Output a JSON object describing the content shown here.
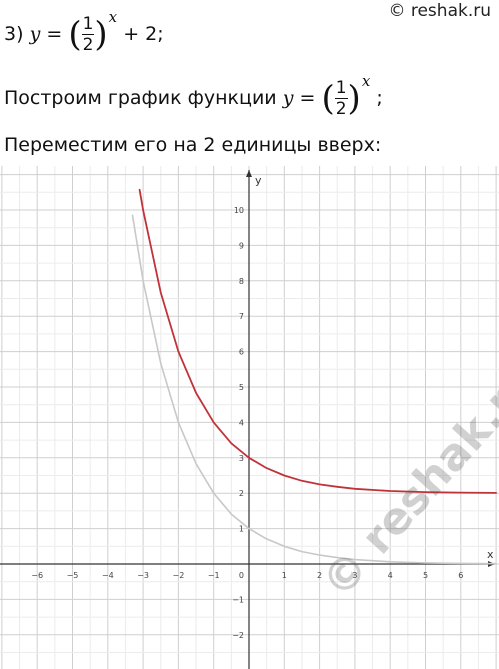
{
  "watermark": {
    "top": "© reshak.ru",
    "diagonal": "© reshak.ru"
  },
  "task": {
    "number": "3)",
    "var_y": "y",
    "eq": "=",
    "frac_num": "1",
    "frac_den": "2",
    "exp": "x",
    "plus_two": "+ 2;"
  },
  "step1": {
    "text": "Построим график функции",
    "var_y": "y",
    "eq": "=",
    "frac_num": "1",
    "frac_den": "2",
    "exp": "x",
    "end": ";"
  },
  "step2": {
    "text": "Переместим его на 2 единицы вверх:"
  },
  "chart_data": {
    "type": "line",
    "title": "",
    "xlabel": "x",
    "ylabel": "y",
    "xlim": [
      -7,
      7.2
    ],
    "ylim": [
      -2.9,
      11.1
    ],
    "grid": true,
    "x_ticks": [
      -6,
      -5,
      -4,
      -3,
      -2,
      -1,
      1,
      2,
      3,
      4,
      5,
      6
    ],
    "y_ticks": [
      -2,
      -1,
      1,
      2,
      3,
      4,
      5,
      6,
      7,
      8,
      9,
      10
    ],
    "origin_label": "0",
    "series": [
      {
        "function": "(1/2)^x",
        "color": "#c8c8c8",
        "x": [
          -3.3,
          -3,
          -2.5,
          -2,
          -1.5,
          -1,
          -0.5,
          0,
          0.5,
          1,
          1.5,
          2,
          2.5,
          3,
          4,
          5,
          6,
          7
        ],
        "y": [
          9.85,
          8,
          5.66,
          4,
          2.83,
          2,
          1.41,
          1,
          0.71,
          0.5,
          0.35,
          0.25,
          0.18,
          0.125,
          0.0625,
          0.031,
          0.016,
          0.008
        ]
      },
      {
        "function": "(1/2)^x + 2",
        "color": "#c0333a",
        "x": [
          -3.1,
          -3,
          -2.5,
          -2,
          -1.5,
          -1,
          -0.5,
          0,
          0.5,
          1,
          1.5,
          2,
          2.5,
          3,
          4,
          5,
          6,
          7
        ],
        "y": [
          10.57,
          10,
          7.66,
          6,
          4.83,
          4,
          3.41,
          3,
          2.71,
          2.5,
          2.35,
          2.25,
          2.18,
          2.125,
          2.0625,
          2.031,
          2.016,
          2.008
        ]
      }
    ]
  }
}
